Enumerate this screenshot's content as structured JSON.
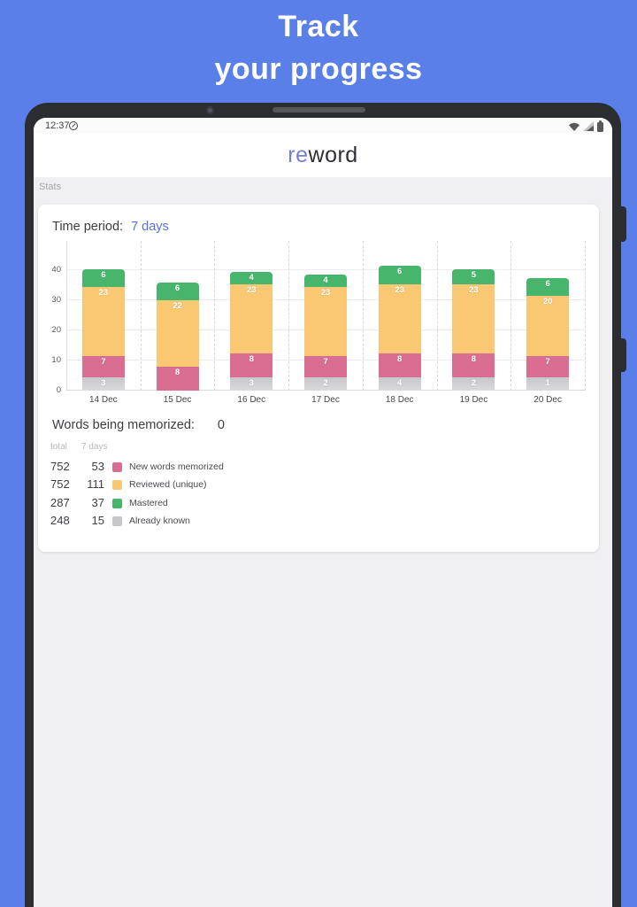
{
  "banner": {
    "line1": "Track",
    "line2": "your progress"
  },
  "status_bar": {
    "time": "12:37"
  },
  "app_bar": {
    "logo_re": "re",
    "logo_word": "word"
  },
  "stats_section_label": "Stats",
  "card": {
    "time_period_label": "Time period:",
    "time_period_value": "7 days",
    "memorized_label": "Words being memorized:",
    "memorized_value": "0",
    "table": {
      "col_total": "total",
      "col_7days": "7 days",
      "rows": [
        {
          "total": "752",
          "seven_days": "53",
          "color": "#d96d92",
          "label": "New words memorized"
        },
        {
          "total": "752",
          "seven_days": "111",
          "color": "#fac873",
          "label": "Reviewed (unique)"
        },
        {
          "total": "287",
          "seven_days": "37",
          "color": "#48b56d",
          "label": "Mastered"
        },
        {
          "total": "248",
          "seven_days": "15",
          "color": "#c7c7c9",
          "label": "Already known"
        }
      ]
    }
  },
  "chart_data": {
    "type": "bar",
    "stacked": true,
    "title": "",
    "xlabel": "",
    "ylabel": "",
    "categories": [
      "14 Dec",
      "15 Dec",
      "16 Dec",
      "17 Dec",
      "18 Dec",
      "19 Dec",
      "20 Dec"
    ],
    "series": [
      {
        "name": "Already known",
        "color": "#c7c7c9",
        "values": [
          3,
          0,
          3,
          2,
          4,
          2,
          1
        ]
      },
      {
        "name": "New words memorized",
        "color": "#d96d92",
        "values": [
          7,
          8,
          8,
          7,
          8,
          8,
          7
        ]
      },
      {
        "name": "Reviewed (unique)",
        "color": "#fac873",
        "values": [
          23,
          22,
          23,
          23,
          23,
          23,
          20
        ]
      },
      {
        "name": "Mastered",
        "color": "#48b56d",
        "values": [
          6,
          6,
          4,
          4,
          6,
          5,
          6
        ]
      }
    ],
    "ylim": [
      0,
      47
    ],
    "yticks": [
      0,
      10,
      20,
      30,
      40
    ],
    "grid": true,
    "value_labels": true,
    "legend_position": "bottom-table"
  },
  "colors": {
    "banner_background": "#5a7fe8",
    "accent_blue": "#5673d8",
    "device_frame": "#2c2d31",
    "screen_background": "#f0f0f2"
  }
}
